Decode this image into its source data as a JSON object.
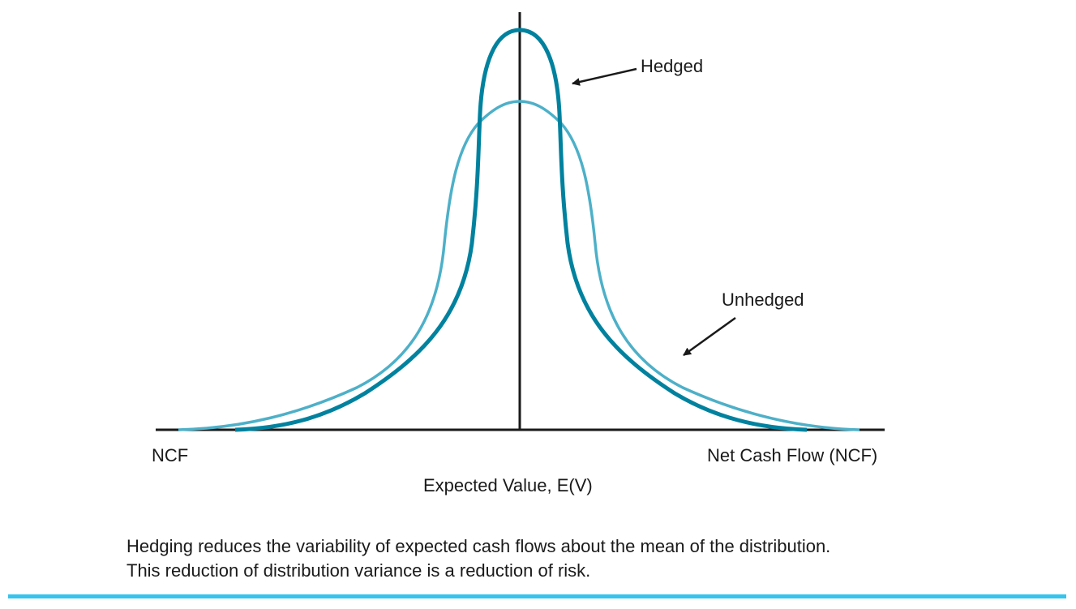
{
  "labels": {
    "hedged": "Hedged",
    "unhedged": "Unhedged",
    "ncf_left": "NCF",
    "x_axis": "Net Cash Flow (NCF)",
    "mean": "Expected Value, E(V)"
  },
  "caption": {
    "line1": "Hedging reduces the variability of expected cash flows about the mean of the distribution.",
    "line2": "This reduction of distribution variance is a reduction of risk."
  },
  "colors": {
    "hedged": "#00829F",
    "unhedged": "#4DB0C8",
    "rule": "#35C4EE"
  }
}
